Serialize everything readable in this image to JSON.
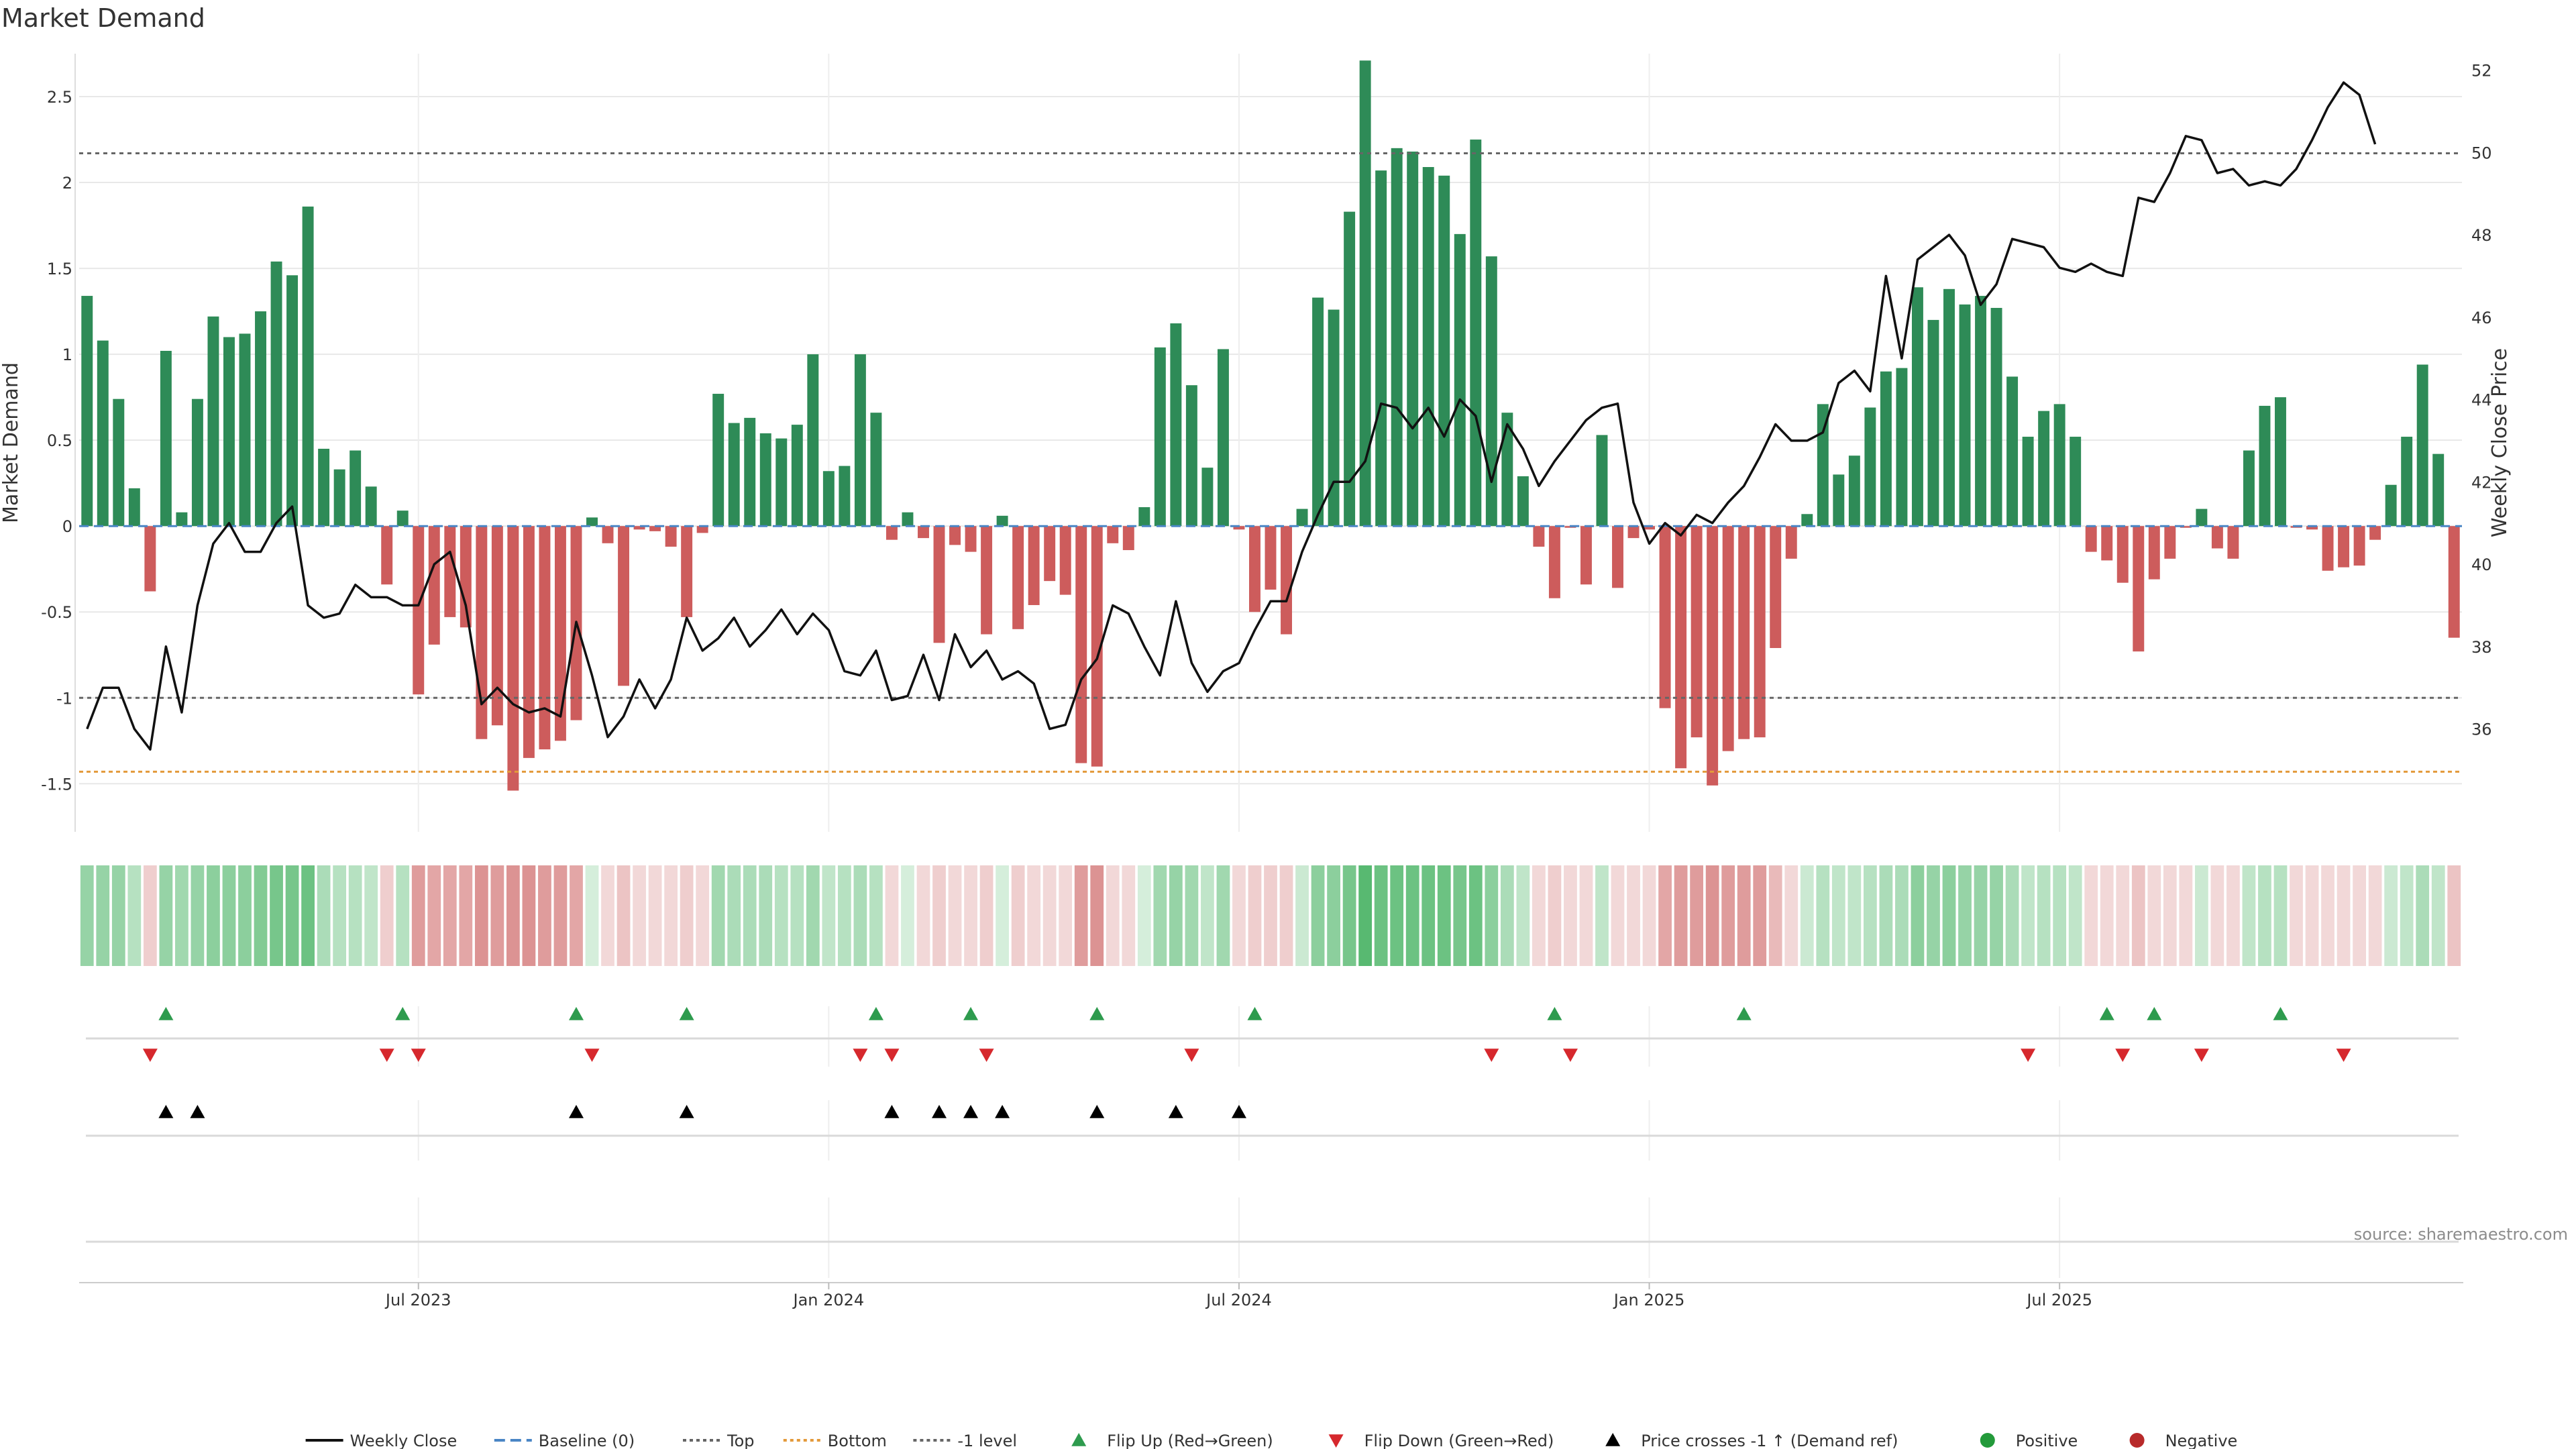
{
  "chart_data": {
    "type": "bar",
    "title": "Market Demand",
    "ylabel": "Market Demand",
    "y2label": "Weekly Close Price",
    "ylim": [
      -1.78,
      2.75
    ],
    "y2lim": [
      33.5,
      52.4
    ],
    "yticks": [
      "-1.5",
      "-1",
      "-0.5",
      "0",
      "0.5",
      "1",
      "1.5",
      "2",
      "2.5"
    ],
    "y2ticks": [
      "36",
      "38",
      "40",
      "42",
      "44",
      "46",
      "48",
      "50",
      "52"
    ],
    "xtick_labels": [
      {
        "label": "Jul 2023",
        "week": 21
      },
      {
        "label": "Jan 2024",
        "week": 47
      },
      {
        "label": "Jul 2024",
        "week": 73
      },
      {
        "label": "Jan 2025",
        "week": 99
      },
      {
        "label": "Jul 2025",
        "week": 125
      }
    ],
    "levels": {
      "top": 2.17,
      "bottom": -1.43,
      "minus_one": -1.0,
      "baseline": 0
    },
    "series": [
      {
        "name": "Market Demand",
        "kind": "bar",
        "values": [
          1.34,
          1.08,
          0.74,
          0.22,
          -0.38,
          1.02,
          0.08,
          0.74,
          1.22,
          1.1,
          1.12,
          1.25,
          1.54,
          1.46,
          1.86,
          0.45,
          0.33,
          0.44,
          0.23,
          -0.34,
          0.09,
          -0.98,
          -0.69,
          -0.53,
          -0.59,
          -1.24,
          -1.16,
          -1.54,
          -1.35,
          -1.3,
          -1.25,
          -1.13,
          0.05,
          -0.1,
          -0.93,
          -0.02,
          -0.03,
          -0.12,
          -0.53,
          -0.04,
          0.77,
          0.6,
          0.63,
          0.54,
          0.51,
          0.59,
          1.0,
          0.32,
          0.35,
          1.0,
          0.66,
          -0.08,
          0.08,
          -0.07,
          -0.68,
          -0.11,
          -0.15,
          -0.63,
          0.06,
          -0.6,
          -0.46,
          -0.32,
          -0.4,
          -1.38,
          -1.4,
          -0.1,
          -0.14,
          0.11,
          1.04,
          1.18,
          0.82,
          0.34,
          1.03,
          -0.02,
          -0.5,
          -0.37,
          -0.63,
          0.1,
          1.33,
          1.26,
          1.83,
          2.71,
          2.07,
          2.2,
          2.18,
          2.09,
          2.04,
          1.7,
          2.25,
          1.57,
          0.66,
          0.29,
          -0.12,
          -0.42,
          -0.01,
          -0.34,
          0.53,
          -0.36,
          -0.07,
          -0.02,
          -1.06,
          -1.41,
          -1.23,
          -1.51,
          -1.31,
          -1.24,
          -1.23,
          -0.71,
          -0.19,
          0.07,
          0.71,
          0.3,
          0.41,
          0.69,
          0.9,
          0.92,
          1.39,
          1.2,
          1.38,
          1.29,
          1.34,
          1.27,
          0.87,
          0.52,
          0.67,
          0.71,
          0.52,
          -0.15,
          -0.2,
          -0.33,
          -0.73,
          -0.31,
          -0.19,
          -0.01,
          0.1,
          -0.13,
          -0.19,
          0.44,
          0.7,
          0.75,
          -0.01,
          -0.02,
          -0.26,
          -0.24,
          -0.23,
          -0.08,
          0.24,
          0.52,
          0.94,
          0.42,
          -0.65
        ]
      },
      {
        "name": "Weekly Close",
        "kind": "line",
        "axis": "right",
        "values": [
          36.0,
          37.0,
          37.0,
          36.0,
          35.5,
          38.0,
          36.4,
          39.0,
          40.5,
          41.0,
          40.3,
          40.3,
          41.0,
          41.4,
          39.0,
          38.7,
          38.8,
          39.5,
          39.2,
          39.2,
          39.0,
          39.0,
          40.0,
          40.3,
          39.0,
          36.6,
          37.0,
          36.6,
          36.4,
          36.5,
          36.3,
          38.6,
          37.3,
          35.8,
          36.3,
          37.2,
          36.5,
          37.2,
          38.7,
          37.9,
          38.2,
          38.7,
          38.0,
          38.4,
          38.9,
          38.3,
          38.8,
          38.4,
          37.4,
          37.3,
          37.9,
          36.7,
          36.8,
          37.8,
          36.7,
          38.3,
          37.5,
          37.9,
          37.2,
          37.4,
          37.1,
          36.0,
          36.1,
          37.2,
          37.7,
          39.0,
          38.8,
          38.0,
          37.3,
          39.1,
          37.6,
          36.9,
          37.4,
          37.6,
          38.4,
          39.1,
          39.1,
          40.3,
          41.2,
          42.0,
          42.0,
          42.5,
          43.9,
          43.8,
          43.3,
          43.8,
          43.1,
          44.0,
          43.6,
          42.0,
          43.4,
          42.8,
          41.9,
          42.5,
          43.0,
          43.5,
          43.8,
          43.9,
          41.5,
          40.5,
          41.0,
          40.7,
          41.2,
          41.0,
          41.5,
          41.9,
          42.6,
          43.4,
          43.0,
          43.0,
          43.2,
          44.4,
          44.7,
          44.2,
          47.0,
          45.0,
          47.4,
          47.7,
          48.0,
          47.5,
          46.3,
          46.8,
          47.9,
          47.8,
          47.7,
          47.2,
          47.1,
          47.3,
          47.1,
          47.0,
          48.9,
          48.8,
          49.5,
          50.4,
          50.3,
          49.5,
          49.6,
          49.2,
          49.3,
          49.2,
          49.6,
          50.3,
          51.1,
          51.7,
          51.4,
          50.2
        ]
      },
      {
        "name": "Demand shade",
        "kind": "heatmap",
        "values": [
          0.5,
          0.5,
          0.5,
          0.35,
          0.25,
          0.5,
          0.45,
          0.5,
          0.55,
          0.55,
          0.55,
          0.6,
          0.65,
          0.65,
          0.7,
          0.4,
          0.35,
          0.35,
          0.3,
          0.25,
          0.35,
          0.5,
          0.45,
          0.45,
          0.45,
          0.55,
          0.5,
          0.55,
          0.55,
          0.5,
          0.5,
          0.45,
          0.2,
          0.2,
          0.3,
          0.2,
          0.2,
          0.2,
          0.25,
          0.2,
          0.45,
          0.4,
          0.4,
          0.4,
          0.35,
          0.35,
          0.45,
          0.3,
          0.35,
          0.4,
          0.35,
          0.2,
          0.2,
          0.2,
          0.25,
          0.2,
          0.2,
          0.25,
          0.2,
          0.25,
          0.2,
          0.2,
          0.2,
          0.5,
          0.55,
          0.2,
          0.2,
          0.2,
          0.45,
          0.5,
          0.45,
          0.3,
          0.45,
          0.2,
          0.25,
          0.25,
          0.25,
          0.25,
          0.55,
          0.55,
          0.65,
          0.8,
          0.7,
          0.7,
          0.7,
          0.7,
          0.7,
          0.65,
          0.7,
          0.55,
          0.4,
          0.3,
          0.2,
          0.25,
          0.2,
          0.2,
          0.3,
          0.2,
          0.2,
          0.2,
          0.45,
          0.5,
          0.5,
          0.55,
          0.5,
          0.5,
          0.5,
          0.35,
          0.2,
          0.25,
          0.35,
          0.3,
          0.3,
          0.35,
          0.4,
          0.4,
          0.55,
          0.5,
          0.55,
          0.5,
          0.5,
          0.5,
          0.4,
          0.3,
          0.35,
          0.35,
          0.3,
          0.2,
          0.2,
          0.2,
          0.3,
          0.2,
          0.2,
          0.2,
          0.25,
          0.2,
          0.2,
          0.3,
          0.35,
          0.35,
          0.2,
          0.2,
          0.2,
          0.2,
          0.2,
          0.2,
          0.25,
          0.3,
          0.4,
          0.3,
          0.3
        ]
      }
    ],
    "markers": {
      "flip_up": [
        5,
        20,
        31,
        38,
        50,
        56,
        64,
        74,
        93,
        105,
        128,
        131,
        139
      ],
      "flip_down": [
        4,
        19,
        21,
        32,
        49,
        51,
        57,
        70,
        89,
        94,
        123,
        129,
        134,
        143
      ],
      "price_crosses": [
        5,
        7,
        31,
        38,
        51,
        54,
        56,
        58,
        64,
        69,
        73
      ]
    },
    "legend": {
      "placement": "bottom-center",
      "items": [
        {
          "label": "Weekly Close",
          "symbol": "line",
          "color": "#111111"
        },
        {
          "label": "Baseline (0)",
          "symbol": "dash",
          "color": "#4a86c5"
        },
        {
          "label": "Top",
          "symbol": "dot",
          "color": "#666666"
        },
        {
          "label": "Bottom",
          "symbol": "dot",
          "color": "#e39a3b"
        },
        {
          "label": "-1 level",
          "symbol": "dot",
          "color": "#666666"
        },
        {
          "label": "Flip Up (Red→Green)",
          "symbol": "triangle-up",
          "color": "#2e9b4e"
        },
        {
          "label": "Flip Down (Green→Red)",
          "symbol": "triangle-down",
          "color": "#d6282d"
        },
        {
          "label": "Price crosses -1 ↑ (Demand ref)",
          "symbol": "triangle-up",
          "color": "#000000"
        },
        {
          "label": "Positive",
          "symbol": "circle",
          "color": "#239a3a"
        },
        {
          "label": "Negative",
          "symbol": "circle",
          "color": "#b82a2a"
        }
      ]
    },
    "source": "source: sharemaestro.com",
    "colors": {
      "positive_bar": "#2e8b57",
      "negative_bar": "#cd5c5c",
      "price_line": "#111111",
      "top_line": "#666666",
      "bottom_line": "#e39a3b",
      "baseline": "#4a86c5",
      "flip_up": "#2e9b4e",
      "flip_down": "#d6282d",
      "price_cross": "#000000"
    }
  }
}
